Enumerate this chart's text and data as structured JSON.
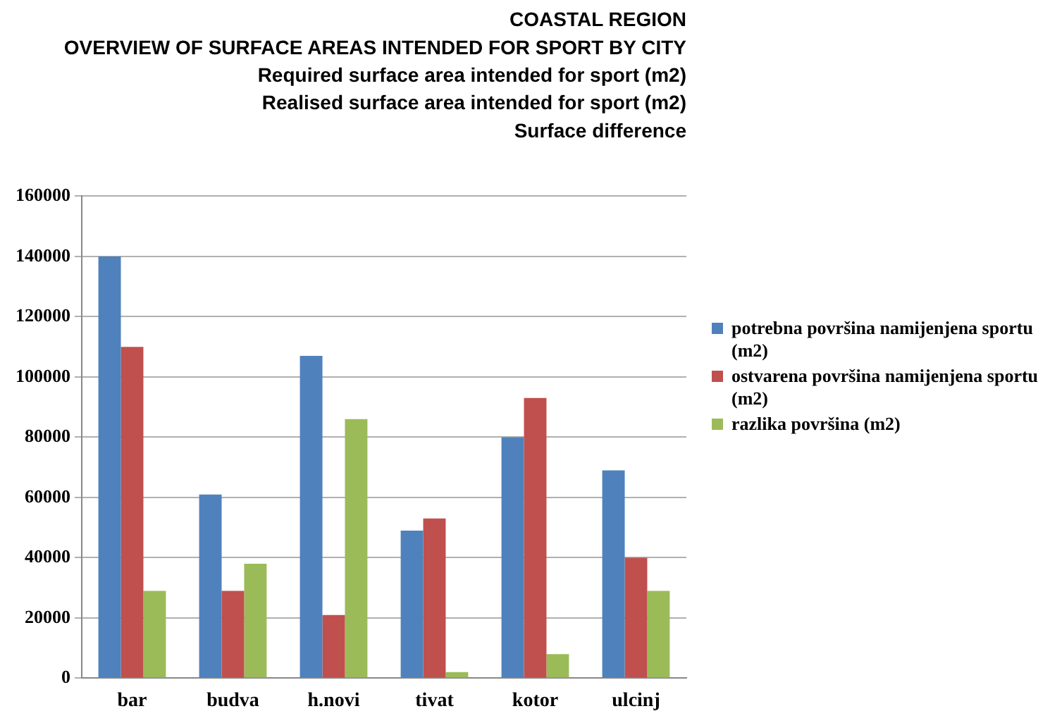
{
  "chart_data": {
    "type": "bar",
    "title": "COASTAL REGION",
    "subtitle": "OVERVIEW OF SURFACE AREAS INTENDED FOR SPORT BY CITY\nRequired surface area intended for sport (m2)\nRealised surface area intended for sport (m2)\nSurface difference",
    "categories": [
      "bar",
      "budva",
      "h.novi",
      "tivat",
      "kotor",
      "ulcinj"
    ],
    "series": [
      {
        "name": "potrebna površina namijenjena sportu (m2)",
        "color": "#4f81bd",
        "values": [
          140000,
          61000,
          107000,
          49000,
          80000,
          69000
        ]
      },
      {
        "name": "ostvarena površina namijenjena sportu (m2)",
        "color": "#c0504d",
        "values": [
          110000,
          29000,
          21000,
          53000,
          93000,
          40000
        ]
      },
      {
        "name": "razlika površina (m2)",
        "color": "#9bbb59",
        "values": [
          29000,
          38000,
          86000,
          2000,
          8000,
          29000
        ]
      }
    ],
    "ylim": [
      0,
      160000
    ],
    "yticks": [
      0,
      20000,
      40000,
      60000,
      80000,
      100000,
      120000,
      140000,
      160000
    ],
    "grid": "y",
    "legend": "right"
  }
}
